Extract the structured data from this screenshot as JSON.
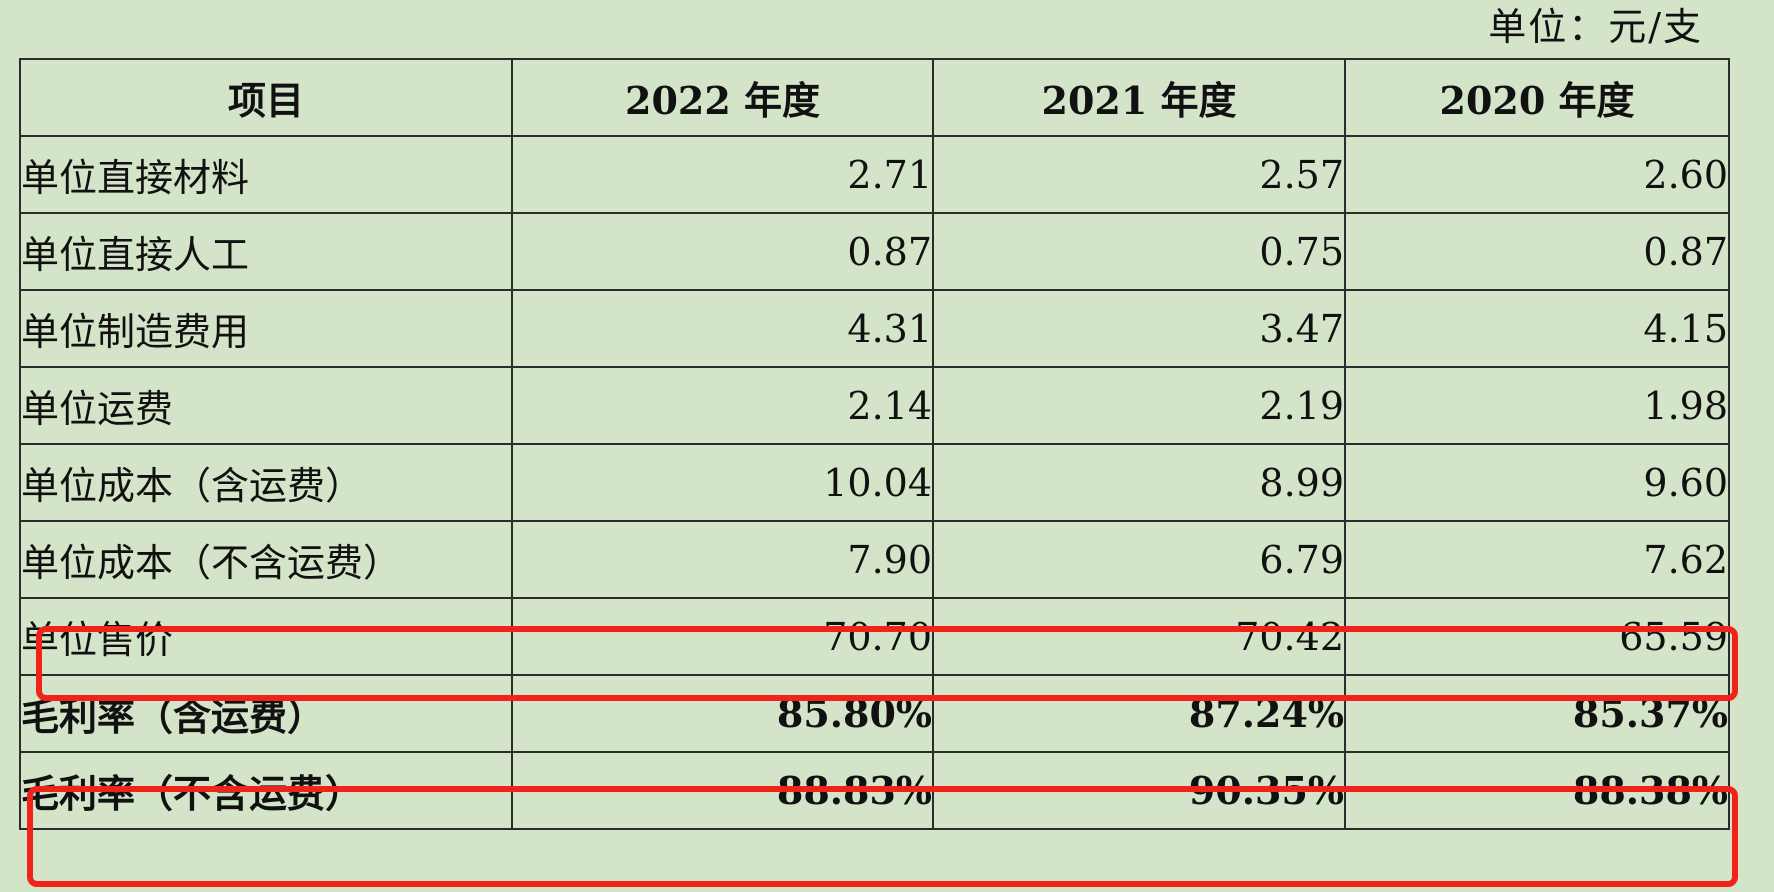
{
  "unit_label": "单位：元/支",
  "headers": [
    "项目",
    "2022 年度",
    "2021 年度",
    "2020 年度"
  ],
  "rows": [
    {
      "label": "单位直接材料",
      "values": [
        "2.71",
        "2.57",
        "2.60"
      ]
    },
    {
      "label": "单位直接人工",
      "values": [
        "0.87",
        "0.75",
        "0.87"
      ]
    },
    {
      "label": "单位制造费用",
      "values": [
        "4.31",
        "3.47",
        "4.15"
      ]
    },
    {
      "label": "单位运费",
      "values": [
        "2.14",
        "2.19",
        "1.98"
      ]
    },
    {
      "label": "单位成本（含运费）",
      "values": [
        "10.04",
        "8.99",
        "9.60"
      ]
    },
    {
      "label": "单位成本（不含运费）",
      "values": [
        "7.90",
        "6.79",
        "7.62"
      ]
    },
    {
      "label": "单位售价",
      "values": [
        "70.70",
        "70.42",
        "65.59"
      ]
    },
    {
      "label": "毛利率（含运费）",
      "values": [
        "85.80%",
        "87.24%",
        "85.37%"
      ]
    },
    {
      "label": "毛利率（不含运费）",
      "values": [
        "88.83%",
        "90.35%",
        "88.38%"
      ]
    }
  ],
  "highlight_color": "#f0231a"
}
